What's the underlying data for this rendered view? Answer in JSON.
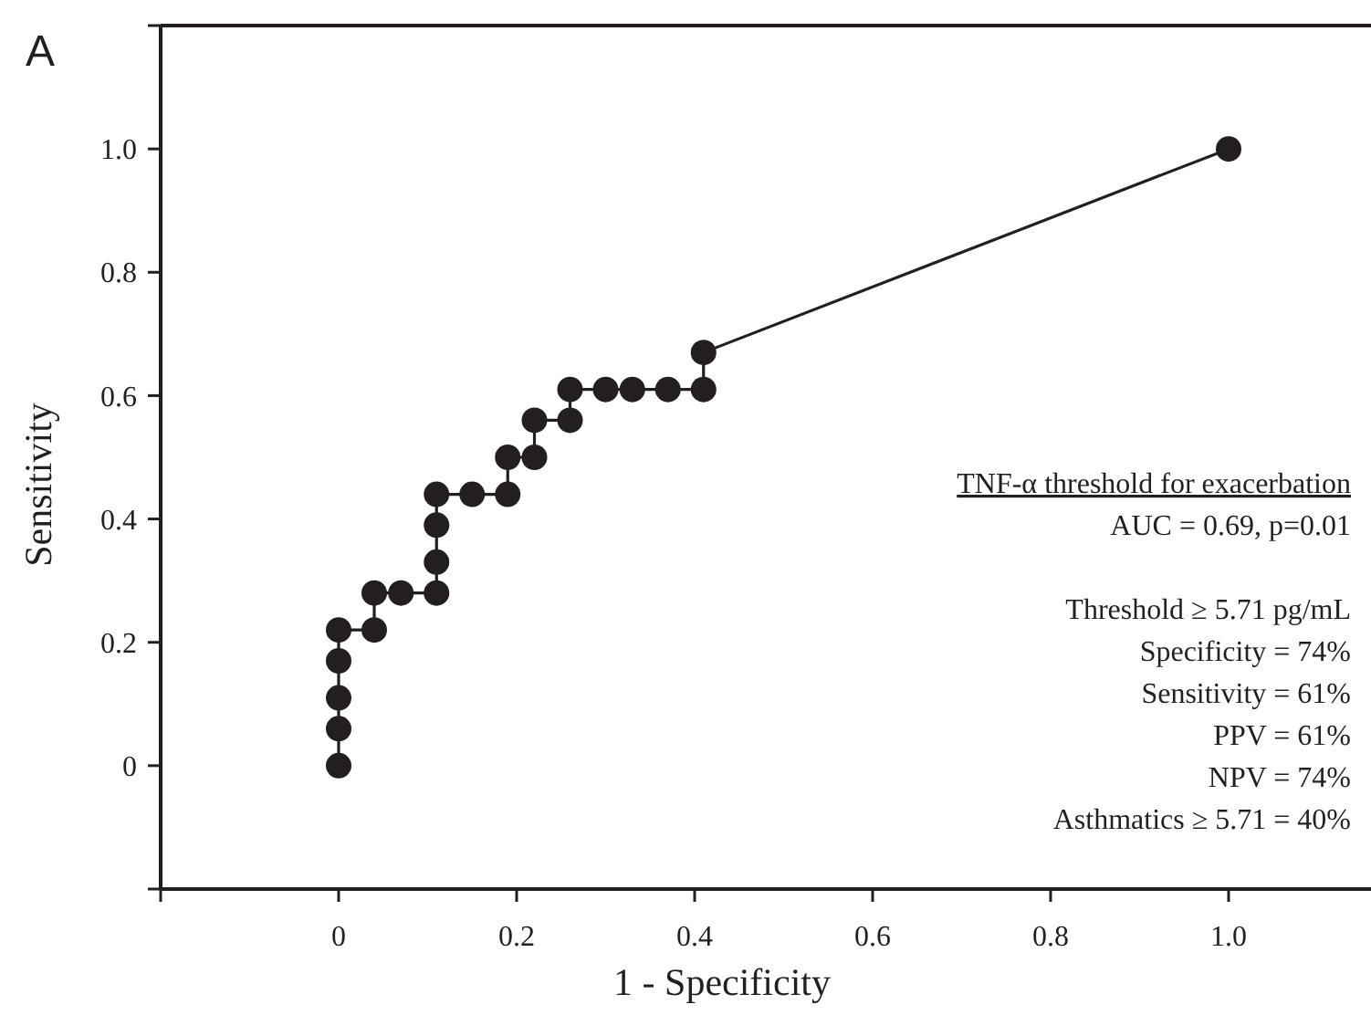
{
  "chart_data": {
    "type": "line",
    "title": "A",
    "xlabel": "1 - Specificity",
    "ylabel": "Sensitivity",
    "x": [
      0,
      0,
      0,
      0,
      0,
      0.04,
      0.04,
      0.07,
      0.11,
      0.11,
      0.11,
      0.11,
      0.15,
      0.19,
      0.19,
      0.22,
      0.22,
      0.26,
      0.26,
      0.3,
      0.33,
      0.37,
      0.41,
      0.41,
      1
    ],
    "series": [
      {
        "color": "#231f20",
        "values": [
          0,
          0.06,
          0.11,
          0.17,
          0.22,
          0.22,
          0.28,
          0.28,
          0.28,
          0.33,
          0.39,
          0.44,
          0.44,
          0.44,
          0.5,
          0.5,
          0.56,
          0.56,
          0.61,
          0.61,
          0.61,
          0.61,
          0.61,
          0.67,
          1
        ]
      }
    ],
    "marker": "circle",
    "line_style": "solid",
    "grid": false,
    "xlim": [
      -0.2,
      1.16
    ],
    "ylim": [
      -0.2,
      1.2
    ],
    "xticks": [
      {
        "value": -0.2,
        "label": null
      },
      0,
      0.2,
      0.4,
      0.6,
      0.8,
      {
        "value": 1,
        "label": "1.0"
      }
    ],
    "yticks": [
      {
        "value": -0.2,
        "label": null
      },
      0,
      0.2,
      0.4,
      0.6,
      0.8,
      {
        "value": 1,
        "label": "1.0"
      },
      {
        "value": 1.2,
        "label": null
      }
    ],
    "annotations": [
      "TNF-α threshold for exacerbation",
      "AUC = 0.69, p=0.01",
      "Threshold ≥ 5.71 pg/mL",
      "Specificity = 74%",
      "Sensitivity = 61%",
      "PPV = 61%",
      "NPV = 74%",
      "Asthmatics ≥ 5.71 = 40%"
    ]
  }
}
